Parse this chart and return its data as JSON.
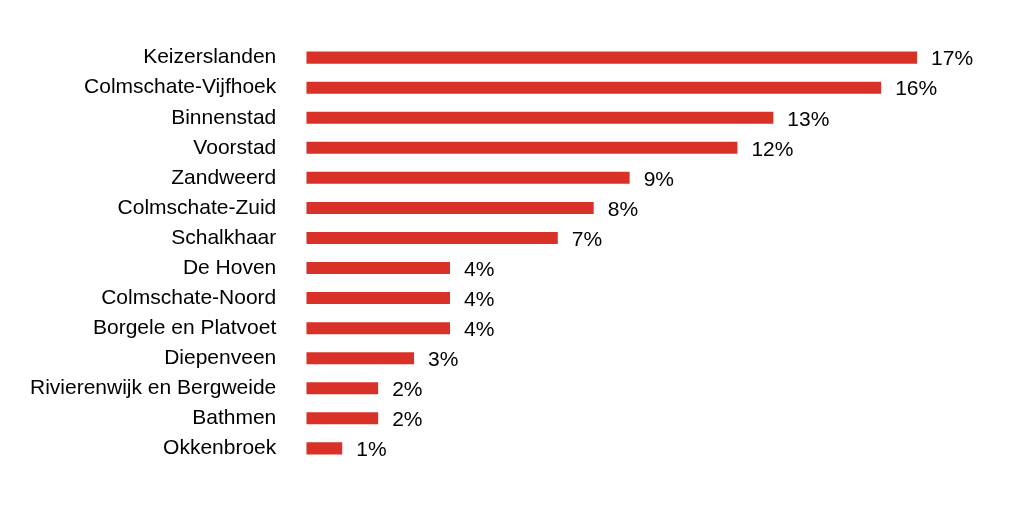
{
  "chart_data": {
    "type": "bar",
    "orientation": "horizontal",
    "categories": [
      "Keizerslanden",
      "Colmschate-Vijfhoek",
      "Binnenstad",
      "Voorstad",
      "Zandweerd",
      "Colmschate-Zuid",
      "Schalkhaar",
      "De Hoven",
      "Colmschate-Noord",
      "Borgele en Platvoet",
      "Diepenveen",
      "Rivierenwijk en Bergweide",
      "Bathmen",
      "Okkenbroek"
    ],
    "values": [
      17,
      16,
      13,
      12,
      9,
      8,
      7,
      4,
      4,
      4,
      3,
      2,
      2,
      1
    ],
    "value_labels": [
      "17%",
      "16%",
      "13%",
      "12%",
      "9%",
      "8%",
      "7%",
      "4%",
      "4%",
      "4%",
      "3%",
      "2%",
      "2%",
      "1%"
    ],
    "color": "#d93127"
  }
}
